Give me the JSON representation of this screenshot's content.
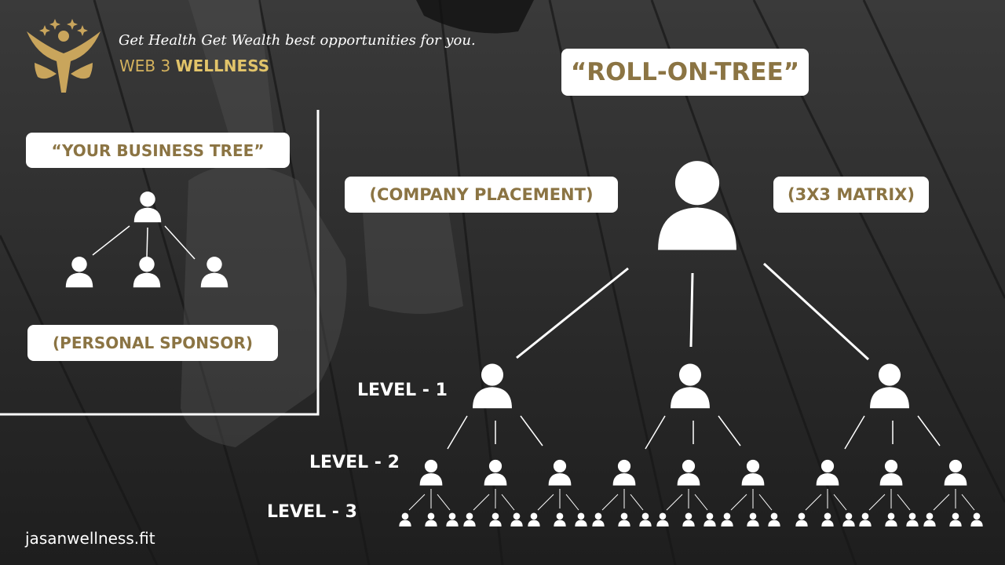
{
  "brand": {
    "tagline": "Get Health Get Wealth best opportunities for you.",
    "name_prefix": "WEB 3",
    "name_highlight": "WELLNESS",
    "website": "jasanwellness.fit"
  },
  "diagram": {
    "main_title": "“ROLL-ON-TREE”",
    "left_label": "(COMPANY PLACEMENT)",
    "right_label": "(3X3 MATRIX)",
    "levels": [
      "LEVEL - 1",
      "LEVEL - 2",
      "LEVEL - 3"
    ]
  },
  "personal_tree": {
    "title": "“YOUR BUSINESS TREE”",
    "label": "(PERSONAL SPONSOR)"
  },
  "colors": {
    "accent_gold": "#8b7443",
    "brand_gold": "#d4b25e",
    "label_bg": "#ffffff"
  },
  "icons": [
    "person-icon",
    "logo-emblem-icon"
  ]
}
